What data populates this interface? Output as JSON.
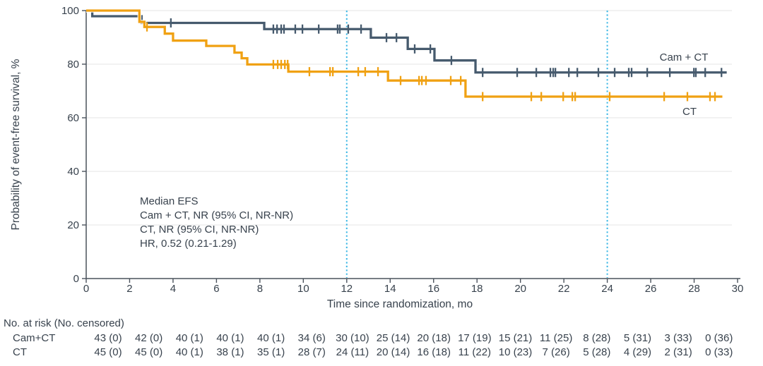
{
  "colors": {
    "cam_ct_curve": "#465a6d",
    "ct_curve": "#f0a113",
    "reference_line": "#3cb7e5",
    "gridline": "#e9e9e9",
    "axis": "#4a525c",
    "text": "#38424d",
    "background": "#ffffff"
  },
  "chart_data": {
    "type": "line",
    "subtype": "kaplan-meier-step",
    "title": "",
    "xlabel": "Time since randomization, mo",
    "ylabel": "Probability of event-free survival, %",
    "xlim": [
      0,
      30
    ],
    "ylim": [
      0,
      100
    ],
    "xticks": [
      0,
      2,
      4,
      6,
      8,
      10,
      12,
      14,
      16,
      18,
      20,
      22,
      24,
      26,
      28,
      30
    ],
    "yticks": [
      0,
      20,
      40,
      60,
      80,
      100
    ],
    "grid": "horizontal",
    "legend_position": "curve-end-labels",
    "reference_lines_x": [
      12,
      24
    ],
    "annotation": [
      "Median EFS",
      "Cam + CT, NR (95% CI, NR-NR)",
      "CT, NR (95% CI, NR-NR)",
      "HR, 0.52 (0.21-1.29)"
    ],
    "series": [
      {
        "name": "Cam + CT",
        "color": "#465a6d",
        "end_t": 29.5,
        "steps": [
          [
            0,
            100
          ],
          [
            0.28,
            97.9
          ],
          [
            2.55,
            95.4
          ],
          [
            8.2,
            93.1
          ],
          [
            13.11,
            89.9
          ],
          [
            14.81,
            85.7
          ],
          [
            16.04,
            81.4
          ],
          [
            17.93,
            76.9
          ]
        ],
        "censors": [
          [
            3.9,
            95.4
          ],
          [
            8.62,
            93.1
          ],
          [
            8.79,
            93.1
          ],
          [
            8.98,
            93.1
          ],
          [
            9.11,
            93.1
          ],
          [
            9.63,
            93.1
          ],
          [
            9.96,
            93.1
          ],
          [
            10.71,
            93.1
          ],
          [
            11.58,
            93.1
          ],
          [
            11.68,
            93.1
          ],
          [
            12.07,
            93.1
          ],
          [
            12.66,
            93.1
          ],
          [
            13.83,
            89.9
          ],
          [
            14.29,
            89.9
          ],
          [
            15.13,
            85.7
          ],
          [
            15.85,
            85.7
          ],
          [
            16.82,
            81.4
          ],
          [
            18.26,
            76.9
          ],
          [
            19.85,
            76.9
          ],
          [
            20.73,
            76.9
          ],
          [
            21.38,
            76.9
          ],
          [
            21.51,
            76.9
          ],
          [
            21.61,
            76.9
          ],
          [
            22.23,
            76.9
          ],
          [
            22.62,
            76.9
          ],
          [
            23.59,
            76.9
          ],
          [
            24.34,
            76.9
          ],
          [
            24.99,
            76.9
          ],
          [
            25.12,
            76.9
          ],
          [
            25.84,
            76.9
          ],
          [
            26.88,
            76.9
          ],
          [
            27.99,
            76.9
          ],
          [
            28.08,
            76.9
          ],
          [
            28.51,
            76.9
          ],
          [
            29.26,
            76.9
          ]
        ]
      },
      {
        "name": "CT",
        "color": "#f0a113",
        "end_t": 29.3,
        "steps": [
          [
            0,
            100
          ],
          [
            2.45,
            95.8
          ],
          [
            2.68,
            93.9
          ],
          [
            3.62,
            91.4
          ],
          [
            4.0,
            88.8
          ],
          [
            5.53,
            86.8
          ],
          [
            6.83,
            84.3
          ],
          [
            7.16,
            82.2
          ],
          [
            7.42,
            79.9
          ],
          [
            9.31,
            77.2
          ],
          [
            13.9,
            73.9
          ],
          [
            17.47,
            67.9
          ]
        ],
        "censors": [
          [
            2.8,
            93.9
          ],
          [
            8.62,
            79.9
          ],
          [
            8.82,
            79.9
          ],
          [
            8.98,
            79.9
          ],
          [
            9.15,
            79.9
          ],
          [
            9.28,
            79.9
          ],
          [
            10.28,
            77.2
          ],
          [
            11.23,
            77.2
          ],
          [
            11.36,
            77.2
          ],
          [
            12.53,
            77.2
          ],
          [
            12.85,
            77.2
          ],
          [
            13.44,
            77.2
          ],
          [
            14.48,
            73.9
          ],
          [
            15.33,
            73.9
          ],
          [
            15.46,
            73.9
          ],
          [
            15.65,
            73.9
          ],
          [
            16.79,
            73.9
          ],
          [
            17.25,
            73.9
          ],
          [
            18.26,
            67.9
          ],
          [
            20.5,
            67.9
          ],
          [
            20.96,
            67.9
          ],
          [
            21.97,
            67.9
          ],
          [
            22.39,
            67.9
          ],
          [
            22.52,
            67.9
          ],
          [
            24.11,
            67.9
          ],
          [
            26.62,
            67.9
          ],
          [
            27.69,
            67.9
          ],
          [
            28.73,
            67.9
          ],
          [
            28.96,
            67.9
          ]
        ]
      }
    ]
  },
  "risk_table": {
    "header": "No. at risk (No. censored)",
    "times": [
      0,
      2,
      4,
      6,
      8,
      10,
      12,
      14,
      16,
      18,
      20,
      22,
      24,
      26,
      28,
      30
    ],
    "rows": [
      {
        "label": "Cam+CT",
        "values": [
          "43 (0)",
          "42 (0)",
          "40 (1)",
          "40 (1)",
          "40 (1)",
          "34 (6)",
          "30 (10)",
          "25 (14)",
          "20 (18)",
          "17 (19)",
          "15 (21)",
          "11 (25)",
          "8 (28)",
          "5 (31)",
          "3 (33)",
          "0 (36)"
        ]
      },
      {
        "label": "CT",
        "values": [
          "45 (0)",
          "45 (0)",
          "40 (1)",
          "38 (1)",
          "35 (1)",
          "28 (7)",
          "24 (11)",
          "20 (14)",
          "16 (18)",
          "11 (22)",
          "10 (23)",
          "7 (26)",
          "5 (28)",
          "4 (29)",
          "2 (31)",
          "0 (33)"
        ]
      }
    ]
  }
}
